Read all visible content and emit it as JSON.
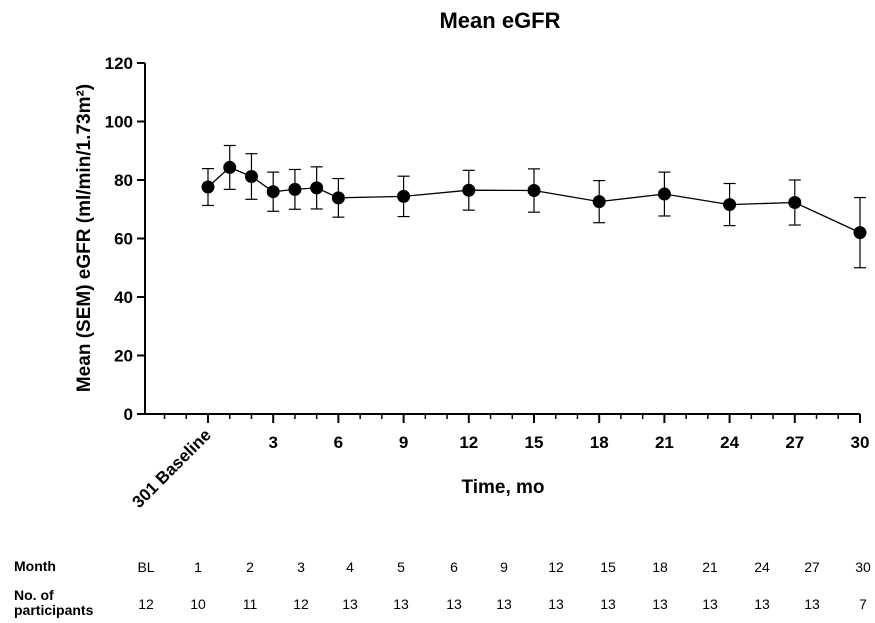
{
  "chart_data": {
    "type": "line",
    "title": "Mean eGFR",
    "xlabel": "Time, mo",
    "ylabel": "Mean (SEM) eGFR (ml/min/1.73m²)",
    "ylim": [
      0,
      120
    ],
    "yticks": [
      0,
      20,
      40,
      60,
      80,
      100,
      120
    ],
    "xlim": [
      -2,
      30
    ],
    "xticks": [
      0,
      3,
      6,
      9,
      12,
      15,
      18,
      21,
      24,
      27,
      30
    ],
    "xtick_labels": [
      "301 Baseline",
      "3",
      "6",
      "9",
      "12",
      "15",
      "18",
      "21",
      "24",
      "27",
      "30"
    ],
    "grid": false,
    "series": [
      {
        "points": [
          {
            "x": 0,
            "y": 77.6,
            "err": 6.3
          },
          {
            "x": 1,
            "y": 84.3,
            "err": 7.5
          },
          {
            "x": 2,
            "y": 81.2,
            "err": 7.8
          },
          {
            "x": 3,
            "y": 76.0,
            "err": 6.7
          },
          {
            "x": 4,
            "y": 76.8,
            "err": 6.8
          },
          {
            "x": 5,
            "y": 77.3,
            "err": 7.2
          },
          {
            "x": 6,
            "y": 73.9,
            "err": 6.6
          },
          {
            "x": 9,
            "y": 74.4,
            "err": 6.9
          },
          {
            "x": 12,
            "y": 76.5,
            "err": 6.8
          },
          {
            "x": 15,
            "y": 76.4,
            "err": 7.4
          },
          {
            "x": 18,
            "y": 72.6,
            "err": 7.2
          },
          {
            "x": 21,
            "y": 75.2,
            "err": 7.5
          },
          {
            "x": 24,
            "y": 71.6,
            "err": 7.2
          },
          {
            "x": 27,
            "y": 72.3,
            "err": 7.7
          },
          {
            "x": 30,
            "y": 62.0,
            "err": 12.0
          }
        ]
      }
    ]
  },
  "table": {
    "month_label": "Month",
    "participants_label_1": "No. of",
    "participants_label_2": "participants",
    "months": [
      "BL",
      "1",
      "2",
      "3",
      "4",
      "5",
      "6",
      "9",
      "12",
      "15",
      "18",
      "21",
      "24",
      "27",
      "30"
    ],
    "participants": [
      "12",
      "10",
      "11",
      "12",
      "13",
      "13",
      "13",
      "13",
      "13",
      "13",
      "13",
      "13",
      "13",
      "13",
      "7"
    ]
  }
}
